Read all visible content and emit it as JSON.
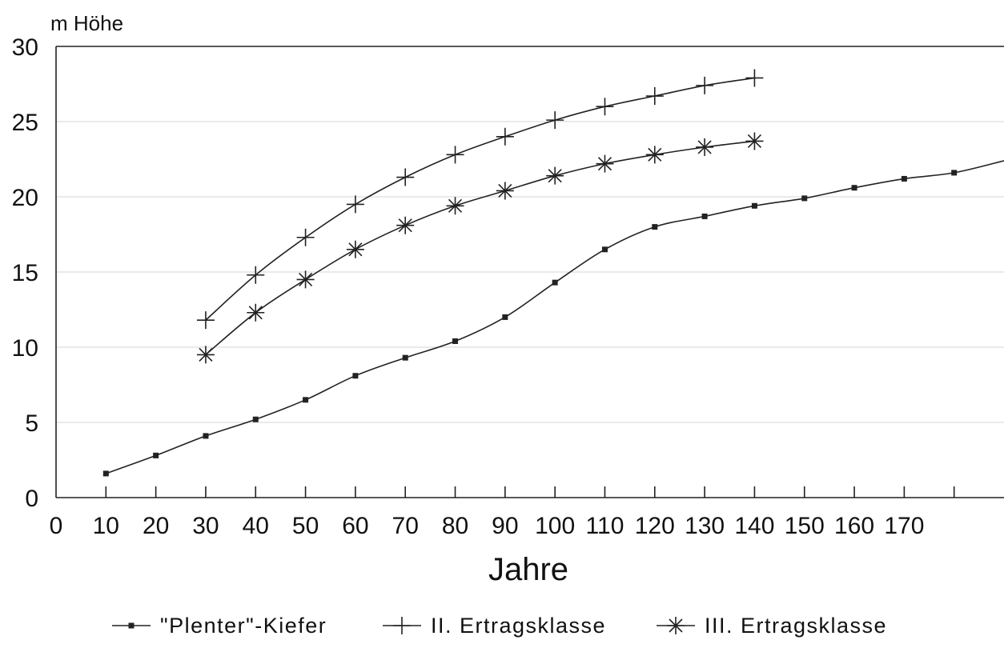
{
  "chart_data": {
    "type": "line",
    "title": "",
    "ylabel": "m Höhe",
    "xlabel": "Jahre",
    "xlim": [
      0,
      190
    ],
    "ylim": [
      0,
      30
    ],
    "x_ticks": [
      0,
      10,
      20,
      30,
      40,
      50,
      60,
      70,
      80,
      90,
      100,
      110,
      120,
      130,
      140,
      150,
      160,
      170
    ],
    "x_tick_marks": [
      10,
      20,
      30,
      40,
      50,
      60,
      70,
      80,
      90,
      100,
      110,
      120,
      130,
      140,
      150,
      160,
      170,
      180
    ],
    "y_ticks": [
      0,
      5,
      10,
      15,
      20,
      25,
      30
    ],
    "grid": "horizontal",
    "legend_position": "bottom",
    "series": [
      {
        "name": "\"Plenter\"-Kiefer",
        "marker": "square",
        "x": [
          10,
          20,
          30,
          40,
          50,
          60,
          70,
          80,
          90,
          100,
          110,
          120,
          130,
          140,
          150,
          160,
          170,
          180,
          190
        ],
        "y": [
          1.6,
          2.8,
          4.1,
          5.2,
          6.5,
          8.1,
          9.3,
          10.4,
          12.0,
          14.3,
          16.5,
          18.0,
          18.7,
          19.4,
          19.9,
          20.6,
          21.2,
          21.6,
          22.4
        ]
      },
      {
        "name": "II. Ertragsklasse",
        "marker": "plus",
        "x": [
          30,
          40,
          50,
          60,
          70,
          80,
          90,
          100,
          110,
          120,
          130,
          140
        ],
        "y": [
          11.8,
          14.8,
          17.3,
          19.5,
          21.3,
          22.8,
          24.0,
          25.1,
          26.0,
          26.7,
          27.4,
          27.9
        ]
      },
      {
        "name": "III. Ertragsklasse",
        "marker": "asterisk",
        "x": [
          30,
          40,
          50,
          60,
          70,
          80,
          90,
          100,
          110,
          120,
          130,
          140
        ],
        "y": [
          9.5,
          12.3,
          14.5,
          16.5,
          18.1,
          19.4,
          20.4,
          21.4,
          22.2,
          22.8,
          23.3,
          23.7
        ]
      }
    ]
  }
}
